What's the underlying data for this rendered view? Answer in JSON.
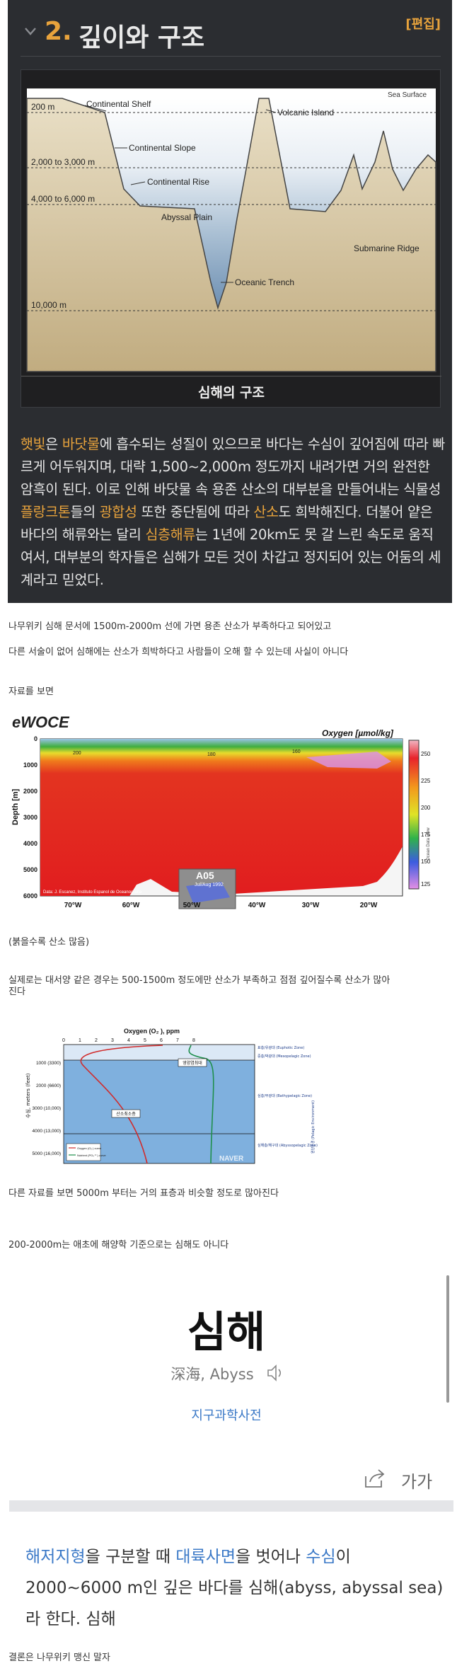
{
  "section": {
    "number": "2.",
    "title": "깊이와 구조",
    "edit_label": "[편집]"
  },
  "diagram": {
    "caption": "심해의 구조",
    "labels": {
      "sea_surface": "Sea Surface",
      "continental_shelf": "Continental Shelf",
      "continental_slope": "Continental Slope",
      "continental_rise": "Continental Rise",
      "abyssal_plain": "Abyssal Plain",
      "oceanic_trench": "Oceanic Trench",
      "volcanic_island": "Volcanic Island",
      "submarine_ridge": "Submarine Ridge",
      "depth_200": "200 m",
      "depth_2000": "2,000 to 3,000 m",
      "depth_4000": "4,000 to 6,000 m",
      "depth_10000": "10,000 m"
    }
  },
  "wiki_paragraph": {
    "parts": [
      {
        "text": "햇빛",
        "link": true
      },
      {
        "text": "은 ",
        "link": false
      },
      {
        "text": "바닷물",
        "link": true
      },
      {
        "text": "에 흡수되는 성질이 있으므로 바다는 수심이 깊어짐에 따라 빠르게 어두워지며, 대략 1,500~2,000m 정도까지 내려가면 거의 완전한 암흑이 된다. 이로 인해 바닷물 속 용존 산소의 대부분을 만들어내는 식물성 ",
        "link": false
      },
      {
        "text": "플랑크톤",
        "link": true
      },
      {
        "text": "들의 ",
        "link": false
      },
      {
        "text": "광합성",
        "link": true
      },
      {
        "text": " 또한 중단됨에 따라 ",
        "link": false
      },
      {
        "text": "산소",
        "link": true
      },
      {
        "text": "도 희박해진다. 더불어 얕은 바다의 해류와는 달리 ",
        "link": false
      },
      {
        "text": "심층해류",
        "link": true
      },
      {
        "text": "는 1년에 20km도 못 갈 느린 속도로 움직여서, 대부분의 학자들은 심해가 모든 것이 차갑고 정지되어 있는 어둠의 세계라고 믿었다.",
        "link": false
      }
    ]
  },
  "post": {
    "line1": "나무위키 심해 문서에 1500m-2000m 선에 가면 용존 산소가 부족하다고 되어있고",
    "line2": "다른 서술이 없어 심해에는 산소가 희박하다고 사람들이 오해 할 수 있는데 사실이 아니다",
    "line3": "자료를 보면",
    "line4": "(붉을수록 산소 많음)",
    "line5a": "실제로는 대서양 같은 경우는 500-1500m 정도에만 산소가 부족하고 점점 깊어질수록 산소가 많아",
    "line5b": "진다",
    "line6": "다른 자료를 보면 5000m 부터는 거의 표층과 비슷할 정도로 많아진다",
    "line7": "200-2000m는 애초에 해양학 기준으로는 심해도 아니다",
    "conclusion": "결론은 나무위키 맹신 말자"
  },
  "woce": {
    "brand": "eWOCE",
    "unit_label": "Oxygen [µmol/kg]",
    "y_axis_label": "Depth [m]",
    "y_ticks": [
      "0",
      "1000",
      "2000",
      "3000",
      "4000",
      "5000",
      "6000"
    ],
    "x_ticks": [
      "70°W",
      "60°W",
      "50°W",
      "40°W",
      "30°W",
      "20°W"
    ],
    "colorbar_ticks": [
      "250",
      "225",
      "200",
      "175",
      "150",
      "125"
    ],
    "section_name": "A05",
    "section_date": "Jul/Aug 1992",
    "credit": "Data: J. Escanez, Instituto Espanol de Oceanografia",
    "side_label": "Ocean Data View",
    "contour_labels": [
      "200",
      "180",
      "160"
    ]
  },
  "oxy_chart": {
    "title": "Oxygen (O₂ ), ppm",
    "x_ticks": [
      "0",
      "1",
      "2",
      "3",
      "4",
      "5",
      "6",
      "7",
      "8"
    ],
    "y_label": "수심, meters (feet)",
    "y_ticks": [
      "1000\n(3300)",
      "2000\n(6600)",
      "3000\n(10,000)",
      "4000\n(13,000)",
      "5000\n(16,000)"
    ],
    "zones": [
      "표층/유광대 (Euphotic Zone)",
      "중층/박광대 (Mesopelagic Zone)",
      "심층/무광대 (Bathypelagic Zone)",
      "심해층/해구대 (Abyssopelagic Zone)"
    ],
    "side_label": "원양환경 (Pelagic Environment)",
    "callouts": [
      "영양염최대",
      "산소최소층"
    ],
    "legend": [
      "Oxygen (O₂ ) curve",
      "Nutrient (PO₄ ³⁻) curve"
    ],
    "watermark": "NAVER"
  },
  "dictionary": {
    "word": "심해",
    "sub": "深海, Abyss",
    "source": "지구과학사전",
    "font_label": "가가",
    "definition": [
      {
        "text": "해저지형",
        "link": true
      },
      {
        "text": "을 구분할 때 ",
        "link": false
      },
      {
        "text": "대륙사면",
        "link": true
      },
      {
        "text": "을 벗어나 ",
        "link": false
      },
      {
        "text": "수심",
        "link": true
      },
      {
        "text": "이 2000~6000 m인 깊은 바다를 심해(abyss, abyssal sea)라 한다. 심해",
        "link": false
      }
    ]
  },
  "colors": {
    "wiki_bg": "#2b2d31",
    "wiki_accent": "#e8a33c",
    "dict_link": "#3b79c7"
  }
}
